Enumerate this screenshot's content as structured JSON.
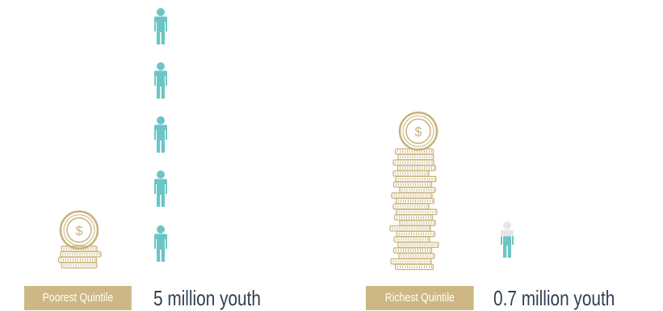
{
  "colors": {
    "coin_gold": "#c9b27a",
    "coin_gold_dark": "#a8915c",
    "person_teal": "#6cc5c5",
    "person_faded": "#e6e6e6",
    "label_bg": "#cdb785",
    "value_text": "#2e3f52"
  },
  "icons": {
    "coin": "dollar-coin-icon",
    "person": "person-icon"
  },
  "groups": [
    {
      "id": "poorest",
      "label": "Poorest Quintile",
      "value_text": "5 million youth",
      "people_full": 5,
      "partial_person_fraction": 0,
      "coin_stack_size": 4
    },
    {
      "id": "richest",
      "label": "Richest Quintile",
      "value_text": "0.7 million youth",
      "people_full": 0,
      "partial_person_fraction": 0.7,
      "coin_stack_size": 22
    }
  ]
}
